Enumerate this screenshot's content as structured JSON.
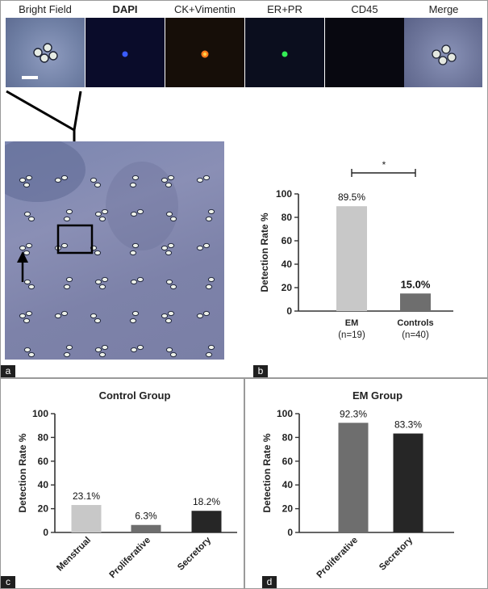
{
  "panel_a": {
    "letter": "a",
    "channels": [
      {
        "label": "Bright Field",
        "bold": false,
        "bg": "#6f7fa4"
      },
      {
        "label": "DAPI",
        "bold": true,
        "bg": "#0a0c2a"
      },
      {
        "label": "CK+Vimentin",
        "bold": false,
        "bg": "#160e08"
      },
      {
        "label": "ER+PR",
        "bold": false,
        "bg": "#0b0e1e"
      },
      {
        "label": "CD45",
        "bold": false,
        "bg": "#080810"
      },
      {
        "label": "Merge",
        "bold": false,
        "bg": "#6c7499"
      }
    ]
  },
  "panel_b": {
    "letter": "b",
    "significance": "*",
    "chart_data": {
      "type": "bar",
      "ylabel": "Detection Rate %",
      "ylim": [
        0,
        100
      ],
      "yticks": [
        0,
        20,
        40,
        60,
        80,
        100
      ],
      "categories": [
        "EM",
        "Controls"
      ],
      "category_sublabels": [
        "(n=19)",
        "(n=40)"
      ],
      "values": [
        89.5,
        15.0
      ],
      "value_labels": [
        "89.5%",
        "15.0%"
      ],
      "colors": [
        "#c8c8c8",
        "#6e6e6e"
      ]
    }
  },
  "panel_c": {
    "letter": "c",
    "chart_data": {
      "type": "bar",
      "title": "Control Group",
      "ylabel": "Detection Rate %",
      "ylim": [
        0,
        100
      ],
      "yticks": [
        0,
        20,
        40,
        60,
        80,
        100
      ],
      "categories": [
        "Menstrual",
        "Proliferative",
        "Secretory"
      ],
      "values": [
        23.1,
        6.3,
        18.2
      ],
      "value_labels": [
        "23.1%",
        "6.3%",
        "18.2%"
      ],
      "colors": [
        "#c8c8c8",
        "#6e6e6e",
        "#262626"
      ]
    }
  },
  "panel_d": {
    "letter": "d",
    "chart_data": {
      "type": "bar",
      "title": "EM Group",
      "ylabel": "Detection Rate %",
      "ylim": [
        0,
        100
      ],
      "yticks": [
        0,
        20,
        40,
        60,
        80,
        100
      ],
      "categories": [
        "Proliferative",
        "Secretory"
      ],
      "values": [
        92.3,
        83.3
      ],
      "value_labels": [
        "92.3%",
        "83.3%"
      ],
      "colors": [
        "#6e6e6e",
        "#262626"
      ]
    }
  }
}
